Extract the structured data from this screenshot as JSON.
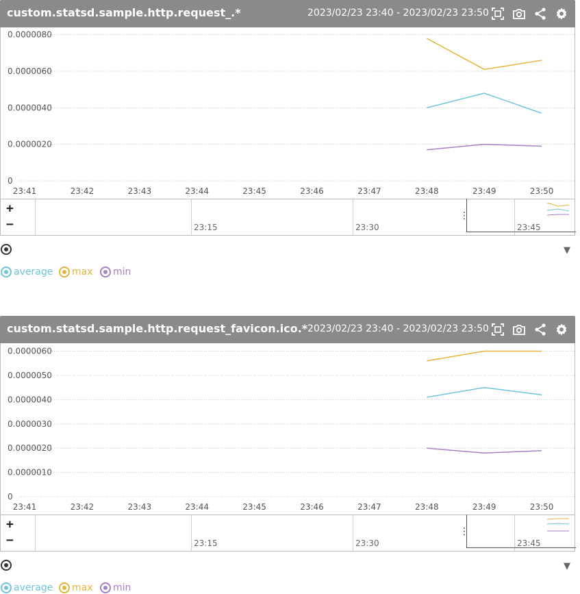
{
  "panels": [
    {
      "title": "custom.statsd.sample.http.request_.*",
      "range": "2023/02/23 23:40 - 2023/02/23 23:50",
      "chart_data": {
        "type": "line",
        "x": [
          "23:41",
          "23:42",
          "23:43",
          "23:44",
          "23:45",
          "23:46",
          "23:47",
          "23:48",
          "23:49",
          "23:50"
        ],
        "y_ticks": [
          "0",
          "0.0000020",
          "0.0000040",
          "0.0000060",
          "0.0000080"
        ],
        "y_tick_values": [
          0,
          2e-06,
          4e-06,
          6e-06,
          8e-06
        ],
        "ylim": [
          0,
          8.1e-06
        ],
        "grid": true,
        "series": [
          {
            "name": "average",
            "color": "#6cc5d6",
            "x": [
              "23:48",
              "23:49",
              "23:50"
            ],
            "values": [
              4e-06,
              4.8e-06,
              3.7e-06
            ]
          },
          {
            "name": "max",
            "color": "#e2b53a",
            "x": [
              "23:48",
              "23:49",
              "23:50"
            ],
            "values": [
              7.8e-06,
              6.1e-06,
              6.6e-06
            ]
          },
          {
            "name": "min",
            "color": "#a77fc3",
            "x": [
              "23:48",
              "23:49",
              "23:50"
            ],
            "values": [
              1.7e-06,
              2e-06,
              1.9e-06
            ]
          }
        ]
      },
      "navigator": {
        "ticks": [
          "23:15",
          "23:30",
          "23:45"
        ],
        "zoom_in": "+",
        "zoom_out": "−",
        "handle": "⋮"
      },
      "legend": [
        {
          "label": "average",
          "color": "#6cc5d6"
        },
        {
          "label": "max",
          "color": "#e2b53a"
        },
        {
          "label": "min",
          "color": "#a77fc3"
        }
      ],
      "caret": "▼"
    },
    {
      "title": "custom.statsd.sample.http.request_favicon.ico.*",
      "range": "2023/02/23 23:40 - 2023/02/23 23:50",
      "chart_data": {
        "type": "line",
        "x": [
          "23:41",
          "23:42",
          "23:43",
          "23:44",
          "23:45",
          "23:46",
          "23:47",
          "23:48",
          "23:49",
          "23:50"
        ],
        "y_ticks": [
          "0",
          "0.0000010",
          "0.0000020",
          "0.0000030",
          "0.0000040",
          "0.0000050",
          "0.0000060"
        ],
        "y_tick_values": [
          0,
          1e-06,
          2e-06,
          3e-06,
          4e-06,
          5e-06,
          6e-06
        ],
        "ylim": [
          0,
          6.1e-06
        ],
        "grid": true,
        "series": [
          {
            "name": "average",
            "color": "#6cc5d6",
            "x": [
              "23:48",
              "23:49",
              "23:50"
            ],
            "values": [
              4.1e-06,
              4.5e-06,
              4.2e-06
            ]
          },
          {
            "name": "max",
            "color": "#e2b53a",
            "x": [
              "23:48",
              "23:49",
              "23:50"
            ],
            "values": [
              5.6e-06,
              6e-06,
              6e-06
            ]
          },
          {
            "name": "min",
            "color": "#a77fc3",
            "x": [
              "23:48",
              "23:49",
              "23:50"
            ],
            "values": [
              2e-06,
              1.8e-06,
              1.9e-06
            ]
          }
        ]
      },
      "navigator": {
        "ticks": [
          "23:15",
          "23:30",
          "23:45"
        ],
        "zoom_in": "+",
        "zoom_out": "−",
        "handle": "⋮"
      },
      "legend": [
        {
          "label": "average",
          "color": "#6cc5d6"
        },
        {
          "label": "max",
          "color": "#e2b53a"
        },
        {
          "label": "min",
          "color": "#a77fc3"
        }
      ],
      "caret": "▼"
    }
  ],
  "icons": {
    "fullscreen": "fullscreen-icon",
    "snapshot": "camera-icon",
    "share": "share-icon",
    "settings": "gear-icon"
  }
}
